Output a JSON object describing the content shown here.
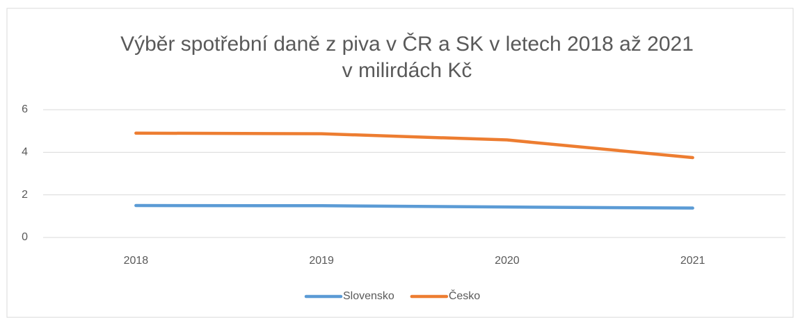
{
  "chart_data": {
    "type": "line",
    "title": "Výběr spotřební daně z piva v ČR a SK v letech 2018 až 2021",
    "subtitle": "v milirdách Kč",
    "categories": [
      "2018",
      "2019",
      "2020",
      "2021"
    ],
    "series": [
      {
        "name": "Slovensko",
        "color": "#5b9bd5",
        "values": [
          1.5,
          1.49,
          1.43,
          1.38
        ]
      },
      {
        "name": "Česko",
        "color": "#ed7d31",
        "values": [
          4.9,
          4.87,
          4.58,
          3.75
        ]
      }
    ],
    "ylim": [
      0,
      6
    ],
    "yticks": [
      0,
      2,
      4,
      6
    ],
    "grid": true,
    "legend": "bottom"
  }
}
